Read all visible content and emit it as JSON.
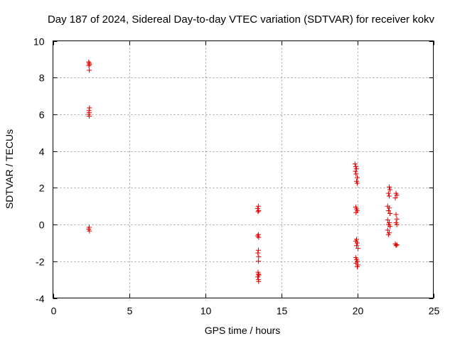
{
  "chart_data": {
    "type": "scatter",
    "title": "Day 187 of 2024, Sidereal Day-to-day VTEC variation (SDTVAR) for receiver kokv",
    "xlabel": "GPS time / hours",
    "ylabel": "SDTVAR / TECUs",
    "xlim": [
      0,
      25
    ],
    "ylim": [
      -4,
      10
    ],
    "xticks": [
      0,
      5,
      10,
      15,
      20,
      25
    ],
    "yticks": [
      -4,
      -2,
      0,
      2,
      4,
      6,
      8,
      10
    ],
    "grid": true,
    "marker": "plus",
    "color": "#e00000",
    "series": [
      {
        "name": "SDTVAR",
        "points": [
          [
            2.35,
            8.85
          ],
          [
            2.38,
            8.78
          ],
          [
            2.4,
            8.72
          ],
          [
            2.36,
            8.65
          ],
          [
            2.39,
            8.4
          ],
          [
            2.4,
            6.35
          ],
          [
            2.37,
            6.2
          ],
          [
            2.38,
            6.1
          ],
          [
            2.36,
            6.0
          ],
          [
            2.39,
            5.9
          ],
          [
            2.38,
            -0.15
          ],
          [
            2.35,
            -0.25
          ],
          [
            2.4,
            -0.35
          ],
          [
            13.5,
            1.0
          ],
          [
            13.45,
            0.88
          ],
          [
            13.52,
            0.75
          ],
          [
            13.48,
            0.7
          ],
          [
            13.5,
            -0.55
          ],
          [
            13.45,
            -0.62
          ],
          [
            13.52,
            -0.7
          ],
          [
            13.5,
            -1.4
          ],
          [
            13.47,
            -1.55
          ],
          [
            13.52,
            -1.75
          ],
          [
            13.5,
            -2.0
          ],
          [
            13.48,
            -2.6
          ],
          [
            13.5,
            -2.7
          ],
          [
            13.53,
            -2.75
          ],
          [
            13.46,
            -2.85
          ],
          [
            13.5,
            -3.0
          ],
          [
            13.52,
            -3.1
          ],
          [
            19.85,
            3.3
          ],
          [
            19.9,
            3.15
          ],
          [
            19.95,
            3.05
          ],
          [
            19.88,
            2.9
          ],
          [
            19.92,
            2.75
          ],
          [
            20.0,
            2.55
          ],
          [
            19.95,
            2.35
          ],
          [
            20.0,
            2.25
          ],
          [
            19.9,
            0.95
          ],
          [
            19.95,
            0.85
          ],
          [
            20.0,
            0.75
          ],
          [
            19.92,
            0.65
          ],
          [
            19.95,
            -0.8
          ],
          [
            19.9,
            -0.9
          ],
          [
            20.0,
            -1.0
          ],
          [
            19.95,
            -1.15
          ],
          [
            20.05,
            -1.3
          ],
          [
            19.9,
            -1.8
          ],
          [
            19.95,
            -1.9
          ],
          [
            20.0,
            -2.0
          ],
          [
            19.92,
            -2.1
          ],
          [
            20.05,
            -2.2
          ],
          [
            20.0,
            -2.3
          ],
          [
            22.1,
            2.05
          ],
          [
            22.15,
            1.9
          ],
          [
            22.05,
            1.7
          ],
          [
            22.1,
            1.55
          ],
          [
            22.0,
            1.0
          ],
          [
            22.1,
            0.9
          ],
          [
            22.05,
            0.75
          ],
          [
            22.15,
            0.6
          ],
          [
            22.0,
            0.25
          ],
          [
            22.1,
            0.1
          ],
          [
            22.05,
            0.0
          ],
          [
            22.15,
            -0.1
          ],
          [
            22.0,
            -0.3
          ],
          [
            22.1,
            -0.45
          ],
          [
            22.05,
            -0.55
          ],
          [
            22.55,
            1.7
          ],
          [
            22.6,
            1.6
          ],
          [
            22.5,
            1.45
          ],
          [
            22.55,
            0.55
          ],
          [
            22.6,
            0.3
          ],
          [
            22.55,
            0.1
          ],
          [
            22.6,
            0.0
          ],
          [
            22.5,
            -1.05
          ],
          [
            22.55,
            -1.15
          ],
          [
            22.6,
            -1.1
          ]
        ]
      }
    ]
  }
}
